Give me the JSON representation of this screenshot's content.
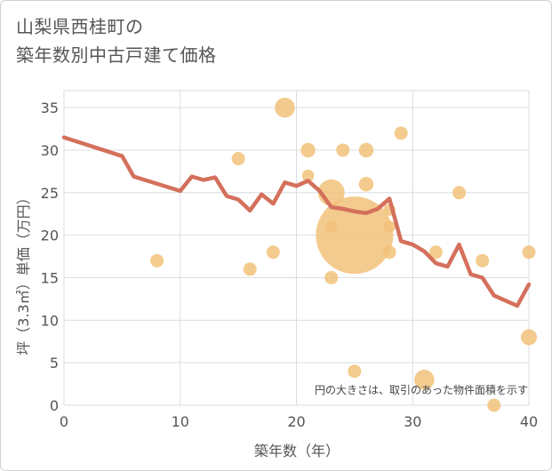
{
  "chart_data": {
    "type": "scatter",
    "title_lines": [
      "山梨県西桂町の",
      "築年数別中古戸建て価格"
    ],
    "xlabel": "築年数（年）",
    "ylabel": "坪（3.3㎡）単価（万円）",
    "xlim": [
      0,
      40
    ],
    "ylim": [
      0,
      37
    ],
    "x_ticks": [
      0,
      10,
      20,
      30,
      40
    ],
    "y_ticks": [
      0,
      5,
      10,
      15,
      20,
      25,
      30,
      35
    ],
    "grid": true,
    "annotation": "円の大きさは、取引のあった物件面積を示す",
    "colors": {
      "bubble": "#f2c27a",
      "line": "#d4705c",
      "grid": "#d9dde3",
      "text": "#555555"
    },
    "bubbles": [
      {
        "x": 8,
        "y": 17,
        "size": 1
      },
      {
        "x": 15,
        "y": 29,
        "size": 1
      },
      {
        "x": 16,
        "y": 16,
        "size": 1
      },
      {
        "x": 18,
        "y": 18,
        "size": 1
      },
      {
        "x": 19,
        "y": 35,
        "size": 1.5
      },
      {
        "x": 21,
        "y": 30,
        "size": 1.1
      },
      {
        "x": 21,
        "y": 27,
        "size": 0.9
      },
      {
        "x": 23,
        "y": 25,
        "size": 2
      },
      {
        "x": 23,
        "y": 21,
        "size": 0.9
      },
      {
        "x": 23,
        "y": 15,
        "size": 1
      },
      {
        "x": 24,
        "y": 30,
        "size": 1
      },
      {
        "x": 25,
        "y": 20,
        "size": 5.8
      },
      {
        "x": 25,
        "y": 4,
        "size": 1
      },
      {
        "x": 26,
        "y": 30,
        "size": 1.1
      },
      {
        "x": 26,
        "y": 26,
        "size": 1.1
      },
      {
        "x": 28,
        "y": 23,
        "size": 0.9
      },
      {
        "x": 28,
        "y": 21,
        "size": 0.9
      },
      {
        "x": 28,
        "y": 18,
        "size": 1
      },
      {
        "x": 29,
        "y": 32,
        "size": 1
      },
      {
        "x": 31,
        "y": 3,
        "size": 1.5
      },
      {
        "x": 32,
        "y": 18,
        "size": 1
      },
      {
        "x": 34,
        "y": 25,
        "size": 1
      },
      {
        "x": 36,
        "y": 17,
        "size": 1
      },
      {
        "x": 37,
        "y": 0,
        "size": 1
      },
      {
        "x": 40,
        "y": 18,
        "size": 1
      },
      {
        "x": 40,
        "y": 8,
        "size": 1.2
      }
    ],
    "line": {
      "x": [
        0,
        5,
        6,
        10,
        11,
        12,
        13,
        14,
        15,
        16,
        17,
        18,
        19,
        20,
        21,
        22,
        23,
        24,
        25,
        26,
        27,
        28,
        29,
        30,
        31,
        32,
        33,
        34,
        35,
        36,
        37,
        38,
        39,
        40
      ],
      "y": [
        31.5,
        29.3,
        26.9,
        25.2,
        26.9,
        26.5,
        26.8,
        24.6,
        24.2,
        22.9,
        24.8,
        23.7,
        26.2,
        25.8,
        26.4,
        25.2,
        23.3,
        23.1,
        22.8,
        22.6,
        23.1,
        24.3,
        19.3,
        18.9,
        18.1,
        16.7,
        16.3,
        18.9,
        15.4,
        15,
        12.9,
        12.3,
        11.7,
        14.2
      ]
    }
  }
}
